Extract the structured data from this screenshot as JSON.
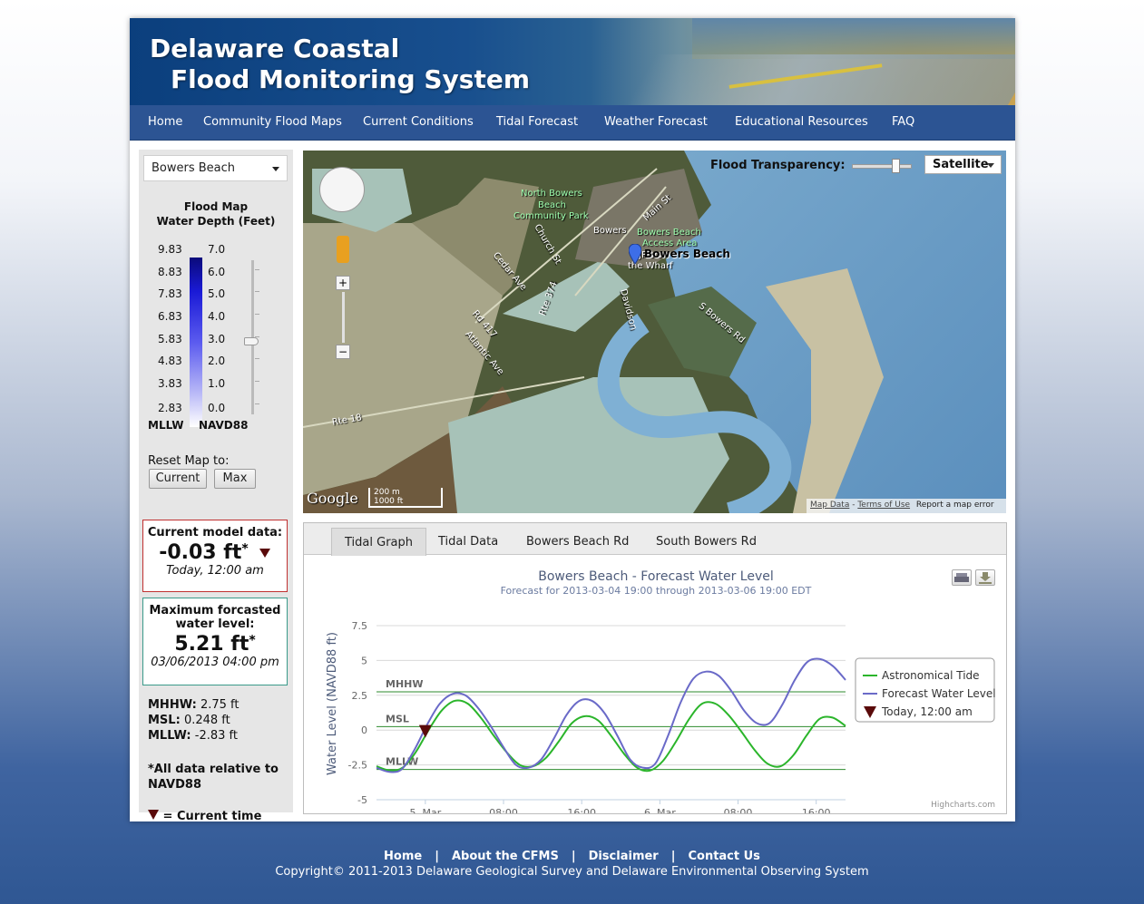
{
  "header": {
    "title_line1": "Delaware Coastal",
    "title_line2": "Flood Monitoring System"
  },
  "nav": {
    "items": [
      "Home",
      "Community Flood Maps",
      "Current Conditions",
      "Tidal Forecast",
      "Weather Forecast",
      "Educational Resources",
      "FAQ"
    ]
  },
  "sidebar": {
    "location_select": "Bowers Beach",
    "legend_title_line1": "Flood Map",
    "legend_title_line2": "Water Depth (Feet)",
    "mllw_values": [
      "9.83",
      "8.83",
      "7.83",
      "6.83",
      "5.83",
      "4.83",
      "3.83",
      "2.83"
    ],
    "navd_values": [
      "7.0",
      "6.0",
      "5.0",
      "4.0",
      "3.0",
      "2.0",
      "1.0",
      "0.0"
    ],
    "mllw_label": "MLLW",
    "navd_label": "NAVD88",
    "reset_label": "Reset Map to:",
    "current_button": "Current",
    "max_button": "Max",
    "current_box": {
      "heading": "Current model data:",
      "value": "-0.03 ft",
      "star": "*",
      "time": "Today, 12:00 am",
      "marker_color": "#5a0a0a"
    },
    "max_box": {
      "heading_line1": "Maximum forcasted",
      "heading_line2": "water level:",
      "value": "5.21 ft",
      "star": "*",
      "time": "03/06/2013 04:00 pm"
    },
    "stats": {
      "mhhw_label": "MHHW:",
      "mhhw_value": "2.75 ft",
      "msl_label": "MSL:",
      "msl_value": "0.248 ft",
      "mllw_label": "MLLW:",
      "mllw_value": "-2.83 ft"
    },
    "note_line1": "*All data relative to",
    "note_line2": "NAVD88",
    "current_time_label": "= Current time"
  },
  "map": {
    "flood_transparency_label": "Flood Transparency:",
    "map_type": "Satellite",
    "labels": {
      "north_bowers": [
        "North Bowers",
        "Beach",
        "Community Park"
      ],
      "bowers": "Bowers",
      "access_area": [
        "Bowers Beach",
        "Access Area"
      ],
      "jps": [
        "JP's on",
        "the Wharf"
      ],
      "bowers_beach_pin": "Bowers Beach",
      "main_st": "Main St",
      "church_st": "Church St",
      "cedar_ave": "Cedar Ave",
      "rte374": "Rte 374",
      "rd417": "Rd 417",
      "atlantic_ave": "Atlantic Ave",
      "davidson": "Davidson",
      "rte18": "Rte 18",
      "s_bowers_rd": "S Bowers Rd"
    },
    "scale_labels": [
      "200 m",
      "1000 ft"
    ],
    "google_logo": "Google",
    "attribution": [
      "Map Data",
      "Terms of Use",
      "Report a map error"
    ]
  },
  "chart_panel": {
    "tabs": [
      "Tidal Graph",
      "Tidal Data",
      "Bowers Beach Rd",
      "South Bowers Rd"
    ],
    "active_tab": "Tidal Graph",
    "credit": "Highcharts.com"
  },
  "chart_data": {
    "type": "line",
    "title": "Bowers Beach - Forecast Water Level",
    "subtitle": "Forecast for 2013-03-04 19:00 through 2013-03-06 19:00 EDT",
    "ylabel": "Water Level (NAVD88 ft)",
    "ylim": [
      -5,
      7.5
    ],
    "yticks": [
      "7.5",
      "5",
      "2.5",
      "0",
      "-2.5",
      "-5"
    ],
    "xlim": [
      "2013-03-04 19:00",
      "2013-03-06 19:00"
    ],
    "xtick_labels": [
      "5. Mar",
      "08:00",
      "16:00",
      "6. Mar",
      "08:00",
      "16:00"
    ],
    "x_hours": [
      0,
      1,
      2,
      3,
      4,
      5,
      6,
      7,
      8,
      9,
      10,
      11,
      12,
      13,
      14,
      15,
      16,
      17,
      18,
      19,
      20,
      21,
      22,
      23,
      24,
      25,
      26,
      27,
      28,
      29,
      30,
      31,
      32,
      33,
      34,
      35,
      36,
      37,
      38,
      39,
      40,
      41,
      42,
      43,
      44,
      45,
      46,
      47,
      48
    ],
    "reference_lines": [
      {
        "label": "MHHW",
        "value": 2.75
      },
      {
        "label": "MSL",
        "value": 0.248
      },
      {
        "label": "MLLW",
        "value": -2.83
      }
    ],
    "series": [
      {
        "name": "Astronomical Tide",
        "color": "#2bb52b",
        "values": [
          -2.6,
          -2.9,
          -2.7,
          -1.6,
          0.0,
          1.4,
          2.1,
          1.9,
          0.9,
          -0.4,
          -1.6,
          -2.5,
          -2.6,
          -2.0,
          -0.8,
          0.5,
          1.0,
          0.7,
          -0.4,
          -1.7,
          -2.7,
          -2.9,
          -2.2,
          -0.8,
          0.8,
          1.9,
          1.9,
          1.1,
          -0.1,
          -1.4,
          -2.4,
          -2.6,
          -1.8,
          -0.4,
          0.8,
          0.9,
          0.3
        ]
      },
      {
        "name": "Forecast Water Level",
        "color": "#6a6ac8",
        "values": [
          -2.7,
          -3.0,
          -2.8,
          -1.4,
          0.4,
          1.9,
          2.6,
          2.5,
          1.6,
          0.3,
          -1.2,
          -2.5,
          -2.7,
          -2.1,
          -0.6,
          1.1,
          2.1,
          2.1,
          1.2,
          -0.4,
          -2.1,
          -2.7,
          -2.4,
          -0.4,
          2.0,
          3.7,
          4.2,
          3.9,
          2.8,
          1.4,
          0.5,
          0.5,
          1.8,
          3.6,
          4.9,
          5.1,
          4.6,
          3.6
        ]
      },
      {
        "name": "Today, 12:00 am",
        "color": "#5a0a0a",
        "x_hour": 5,
        "value": -0.03
      }
    ],
    "legend_position": "right"
  },
  "footer": {
    "links": [
      "Home",
      "About the CFMS",
      "Disclaimer",
      "Contact Us"
    ],
    "separator": "|",
    "copyright": "Copyright© 2011-2013 Delaware Geological Survey and Delaware Environmental Observing System"
  }
}
